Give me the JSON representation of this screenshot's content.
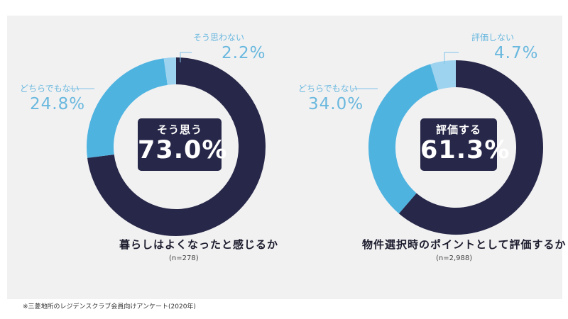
{
  "colors": {
    "main": "#272749",
    "neutral": "#4fb3e0",
    "negative": "#9ed3ef",
    "background": "#f1f1f2",
    "callout_text": "#6ab8de"
  },
  "chart_data": [
    {
      "type": "pie",
      "subtype": "donut",
      "title": "暮らしはよくなったと感じるか",
      "sample_size": "(n=278)",
      "slices": [
        {
          "label": "そう思う",
          "value": 73.0,
          "value_text": "73.0%",
          "color": "#272749"
        },
        {
          "label": "どちらでもない",
          "value": 24.8,
          "value_text": "24.8%",
          "color": "#4fb3e0"
        },
        {
          "label": "そう思わない",
          "value": 2.2,
          "value_text": "2.2%",
          "color": "#9ed3ef"
        }
      ]
    },
    {
      "type": "pie",
      "subtype": "donut",
      "title": "物件選択時のポイントとして評価するか",
      "sample_size": "(n=2,988)",
      "slices": [
        {
          "label": "評価する",
          "value": 61.3,
          "value_text": "61.3%",
          "color": "#272749"
        },
        {
          "label": "どちらでもない",
          "value": 34.0,
          "value_text": "34.0%",
          "color": "#4fb3e0"
        },
        {
          "label": "評価しない",
          "value": 4.7,
          "value_text": "4.7%",
          "color": "#9ed3ef"
        }
      ]
    }
  ],
  "footnote": "※三菱地所のレジデンスクラブ会員向けアンケート(2020年)"
}
